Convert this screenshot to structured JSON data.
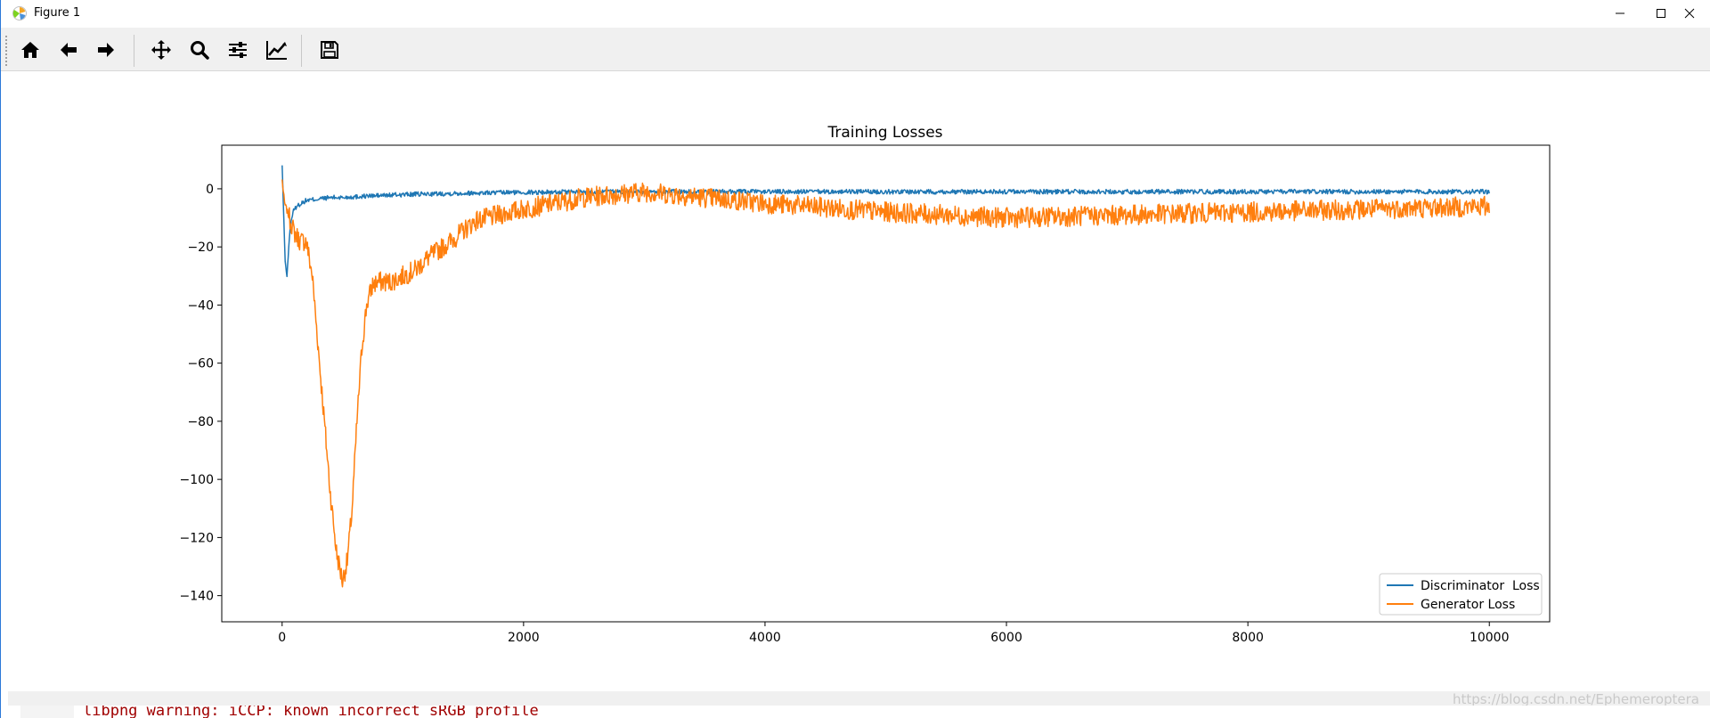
{
  "window": {
    "title": "Figure 1"
  },
  "toolbar": {
    "buttons": [
      {
        "name": "home-icon"
      },
      {
        "name": "back-arrow-icon"
      },
      {
        "name": "forward-arrow-icon"
      },
      {
        "name": "pan-icon"
      },
      {
        "name": "zoom-icon"
      },
      {
        "name": "configure-subplots-icon"
      },
      {
        "name": "edit-axis-icon"
      },
      {
        "name": "save-icon"
      }
    ]
  },
  "console": {
    "text": "libpng warning: iCCP: known incorrect sRGB profile"
  },
  "watermark": "https://blog.csdn.net/Ephemeroptera",
  "colors": {
    "discriminator": "#1f77b4",
    "generator": "#ff7f0e"
  },
  "chart_data": {
    "type": "line",
    "title": "Training Losses",
    "xlabel": "",
    "ylabel": "",
    "xlim": [
      -500,
      10500
    ],
    "ylim": [
      -149,
      15
    ],
    "xticks": [
      0,
      2000,
      4000,
      6000,
      8000,
      10000
    ],
    "xtick_labels": [
      "0",
      "2000",
      "4000",
      "6000",
      "8000",
      "10000"
    ],
    "yticks": [
      0,
      -20,
      -40,
      -60,
      -80,
      -100,
      -120,
      -140
    ],
    "ytick_labels": [
      "0",
      "−20",
      "−40",
      "−60",
      "−80",
      "−100",
      "−120",
      "−140"
    ],
    "legend_position": "lower-right",
    "series": [
      {
        "name": "Discriminator  Loss",
        "color": "#1f77b4",
        "x": [
          0,
          10,
          25,
          40,
          55,
          70,
          90,
          120,
          160,
          200,
          300,
          400,
          500,
          700,
          1000,
          1500,
          2000,
          3000,
          4000,
          5000,
          6000,
          7000,
          8000,
          9000,
          10000
        ],
        "y": [
          8,
          -5,
          -25,
          -30,
          -20,
          -12,
          -8,
          -6,
          -5,
          -4,
          -3.5,
          -3,
          -3,
          -2.5,
          -2,
          -1.5,
          -1.2,
          -1,
          -1,
          -1,
          -1,
          -1,
          -1,
          -1,
          -1
        ],
        "noise": 0.8
      },
      {
        "name": "Generator Loss",
        "color": "#ff7f0e",
        "x": [
          0,
          20,
          60,
          100,
          150,
          200,
          250,
          300,
          350,
          400,
          450,
          500,
          540,
          580,
          620,
          660,
          700,
          750,
          800,
          900,
          1000,
          1100,
          1200,
          1400,
          1600,
          1800,
          2000,
          2500,
          3000,
          3500,
          4000,
          5000,
          6000,
          7000,
          8000,
          9000,
          10000
        ],
        "y": [
          3,
          -5,
          -10,
          -15,
          -18,
          -18,
          -30,
          -55,
          -80,
          -105,
          -125,
          -135,
          -128,
          -110,
          -80,
          -55,
          -40,
          -33,
          -32,
          -32,
          -30,
          -28,
          -24,
          -18,
          -11,
          -9,
          -7,
          -3,
          -1,
          -3,
          -5,
          -8,
          -10,
          -9,
          -8,
          -7,
          -6
        ],
        "noise": 3.5
      }
    ]
  }
}
